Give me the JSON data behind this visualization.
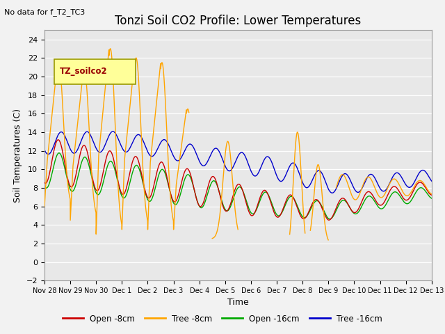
{
  "title": "Tonzi Soil CO2 Profile: Lower Temperatures",
  "annotation": "No data for f_T2_TC3",
  "legend_label": "TZ_soilco2",
  "ylabel": "Soil Temperatures (C)",
  "xlabel": "Time",
  "ylim": [
    -2,
    25
  ],
  "yticks": [
    -2,
    0,
    2,
    4,
    6,
    8,
    10,
    12,
    14,
    16,
    18,
    20,
    22,
    24
  ],
  "background_color": "#f2f2f2",
  "plot_background": "#e8e8e8",
  "series_colors": {
    "open8": "#cc0000",
    "tree8": "#ffa500",
    "open16": "#00aa00",
    "tree16": "#0000cc"
  },
  "series_labels": {
    "open8": "Open -8cm",
    "tree8": "Tree -8cm",
    "open16": "Open -16cm",
    "tree16": "Tree -16cm"
  },
  "xtick_labels": [
    "Nov 28",
    "Nov 29",
    "Nov 30",
    "Dec 1",
    "Dec 2",
    "Dec 3",
    "Dec 4",
    "Dec 5",
    "Dec 6",
    "Dec 7",
    "Dec 8",
    "Dec 9",
    "Dec 10",
    "Dec 11",
    "Dec 12",
    "Dec 13"
  ],
  "title_fontsize": 12,
  "axis_fontsize": 9,
  "tick_fontsize": 8
}
